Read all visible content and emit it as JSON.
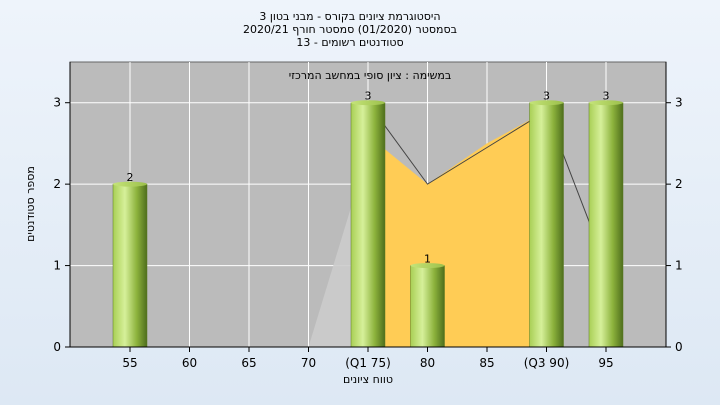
{
  "chart_data": {
    "type": "bar",
    "title_lines": [
      "היסטוגרמת ציונים בקורס - מבני בטון 3",
      "בסמסטר  (01/2020)  סמסטר חורף  2020/21",
      "סטודנטים רשומים - 13"
    ],
    "annotation": "במשימה : ציון סופי במחשב המרכזי",
    "xlabel": "טווח ציונים",
    "ylabel": "מספר סטודנטים",
    "categories": [
      "55",
      "60",
      "65",
      "70",
      "(Q1 75)",
      "80",
      "85",
      "(Q3 90)",
      "95"
    ],
    "values": [
      2,
      0,
      0,
      0,
      3,
      1,
      0,
      3,
      3
    ],
    "data_labels": [
      "2",
      "",
      "",
      "",
      "3",
      "1",
      "",
      "3",
      "3"
    ],
    "ylim": [
      0,
      3.5
    ],
    "yticks": [
      "0",
      "1",
      "2",
      "3"
    ],
    "grid": true,
    "iqr_band": {
      "x": [
        "70",
        "(Q1 75)",
        "80",
        "85",
        "(Q3 90)"
      ],
      "y": [
        0,
        2.6,
        2.0,
        2.5,
        2.9
      ],
      "color": "#ffcc55"
    },
    "curve": {
      "x": [
        "(Q1 75)",
        "80",
        "85",
        "(Q3 90)",
        "95"
      ],
      "y": [
        3.0,
        2.0,
        2.45,
        2.9,
        1.0
      ]
    },
    "colors": {
      "bar_light": "#d4ef90",
      "bar_mid": "#9cc04a",
      "bar_dark": "#5a7a22",
      "plot_bg": "#bbbbbb",
      "band": "#ffcc55",
      "gray_area": "#cccccc"
    }
  }
}
